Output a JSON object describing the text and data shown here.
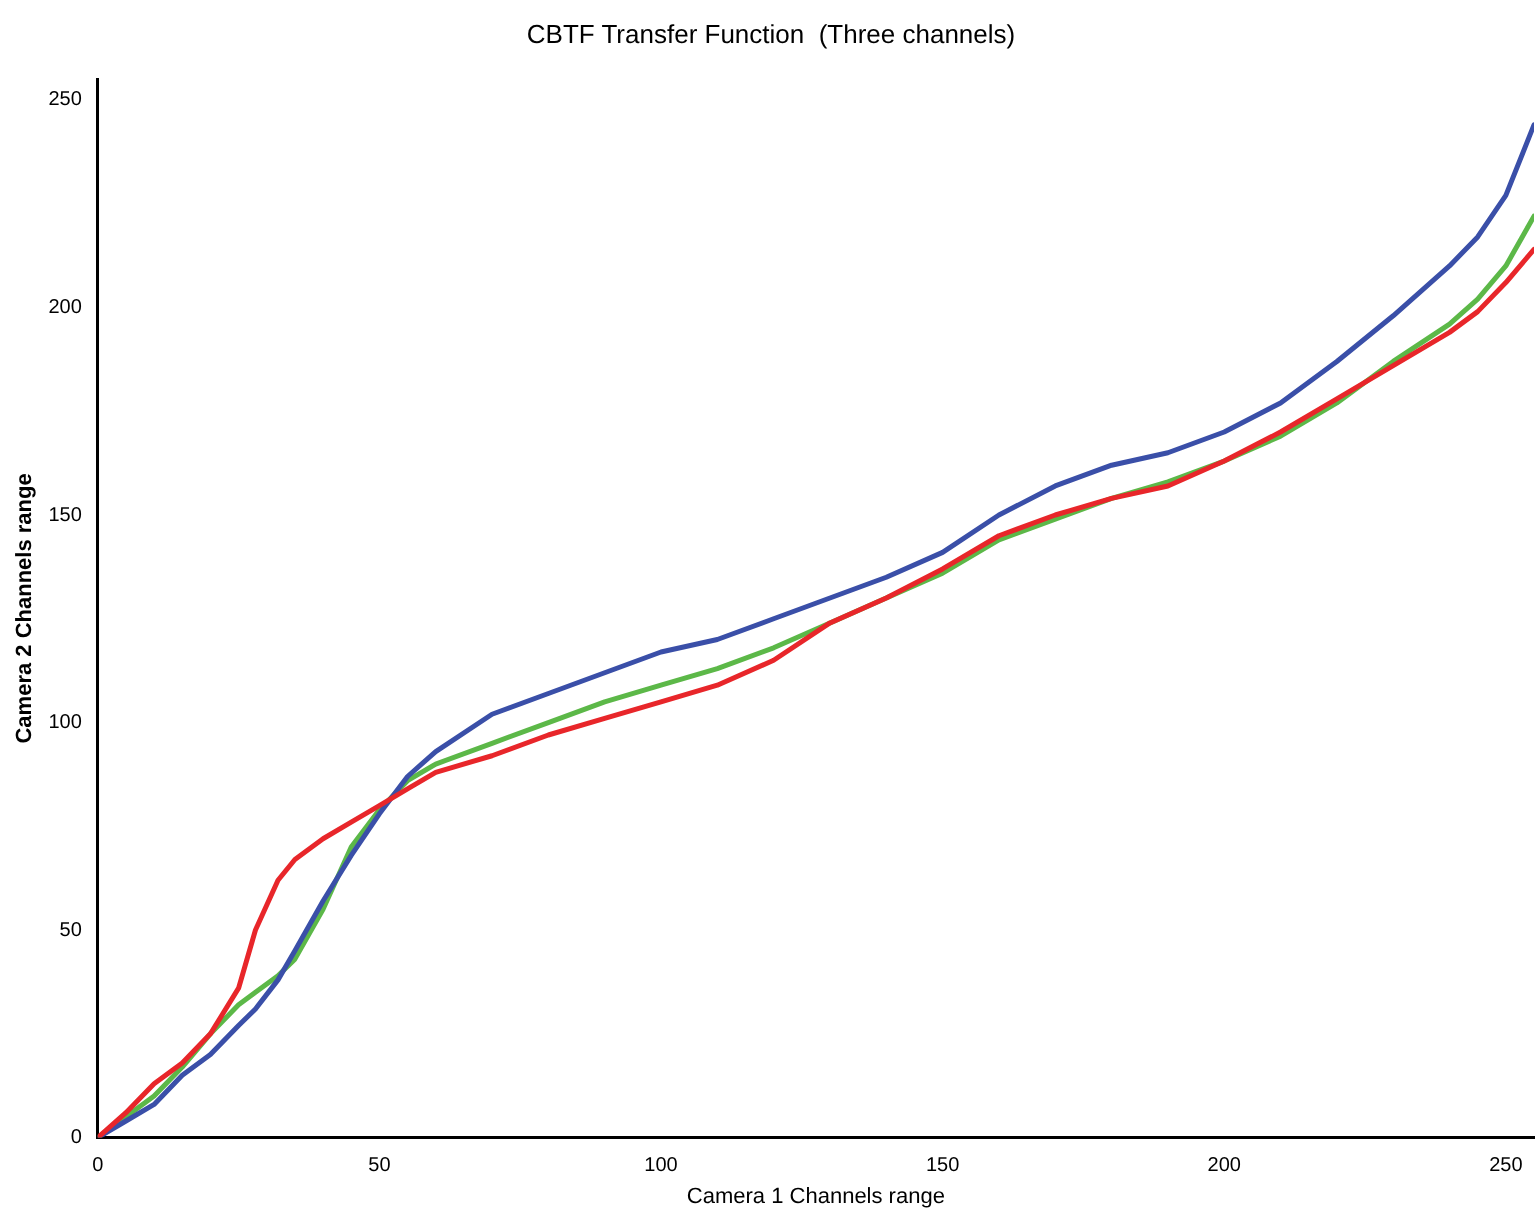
{
  "chart_data": {
    "type": "line",
    "title": "CBTF Transfer Function  (Three channels)",
    "xlabel": "Camera 1 Channels range",
    "ylabel": "Camera 2 Channels range",
    "x": [
      0,
      5,
      10,
      15,
      20,
      25,
      28,
      32,
      35,
      40,
      45,
      50,
      55,
      60,
      70,
      80,
      90,
      100,
      110,
      120,
      130,
      140,
      150,
      160,
      170,
      180,
      190,
      200,
      210,
      220,
      230,
      240,
      245,
      250,
      255
    ],
    "series": [
      {
        "color": "#e8262a",
        "values": [
          0,
          6,
          13,
          18,
          25,
          36,
          50,
          62,
          67,
          72,
          76,
          80,
          84,
          88,
          92,
          97,
          101,
          105,
          109,
          115,
          124,
          130,
          137,
          145,
          150,
          154,
          157,
          163,
          170,
          178,
          186,
          194,
          199,
          206,
          214
        ]
      },
      {
        "color": "#3a4fa8",
        "values": [
          0,
          4,
          8,
          15,
          20,
          27,
          31,
          38,
          45,
          57,
          68,
          78,
          87,
          93,
          102,
          107,
          112,
          117,
          120,
          125,
          130,
          135,
          141,
          150,
          157,
          162,
          165,
          170,
          177,
          187,
          198,
          210,
          217,
          227,
          244
        ]
      },
      {
        "color": "#5cb848",
        "values": [
          0,
          5,
          10,
          17,
          25,
          32,
          35,
          39,
          43,
          55,
          70,
          79,
          86,
          90,
          95,
          100,
          105,
          109,
          113,
          118,
          124,
          130,
          136,
          144,
          149,
          154,
          158,
          163,
          169,
          177,
          187,
          196,
          202,
          210,
          222
        ]
      }
    ],
    "xlim": [
      0,
      255
    ],
    "xticks": [
      0,
      50,
      100,
      150,
      200,
      250
    ],
    "ylim": [
      0,
      255
    ],
    "yticks": [
      0,
      50,
      100,
      150,
      200,
      250
    ],
    "grid": false,
    "legend": false,
    "marker": "none",
    "line_style": "solid"
  }
}
